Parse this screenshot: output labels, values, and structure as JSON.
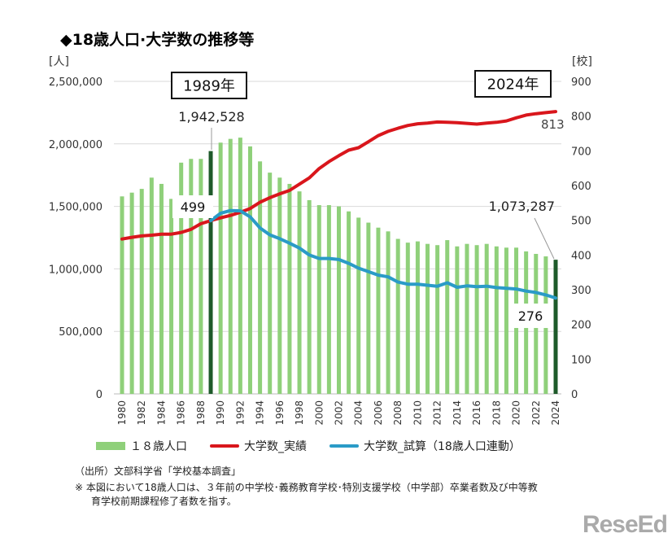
{
  "title": "◆18歳人口·大学数の推移等",
  "chart_data": {
    "type": "bar+line",
    "left_unit": "[人]",
    "right_unit": "[校]",
    "ylim_left": [
      0,
      2500000
    ],
    "ylim_right": [
      0,
      900
    ],
    "left_ticks": [
      "0",
      "500,000",
      "1,000,000",
      "1,500,000",
      "2,000,000",
      "2,500,000"
    ],
    "right_ticks": [
      "0",
      "100",
      "200",
      "300",
      "400",
      "500",
      "600",
      "700",
      "800",
      "900"
    ],
    "grid": true,
    "legend_placement": "bottom",
    "x": [
      1980,
      1981,
      1982,
      1983,
      1984,
      1985,
      1986,
      1987,
      1988,
      1989,
      1990,
      1991,
      1992,
      1993,
      1994,
      1995,
      1996,
      1997,
      1998,
      1999,
      2000,
      2001,
      2002,
      2003,
      2004,
      2005,
      2006,
      2007,
      2008,
      2009,
      2010,
      2011,
      2012,
      2013,
      2014,
      2015,
      2016,
      2017,
      2018,
      2019,
      2020,
      2021,
      2022,
      2023,
      2024
    ],
    "series": [
      {
        "name": "１８歳人口",
        "type": "bar",
        "axis": "left",
        "color": "#8fd07a",
        "highlight_color": "#1e5a2a",
        "values": [
          1580000,
          1610000,
          1640000,
          1730000,
          1680000,
          1560000,
          1850000,
          1880000,
          1880000,
          1942528,
          2010000,
          2040000,
          2050000,
          1980000,
          1860000,
          1770000,
          1730000,
          1680000,
          1620000,
          1550000,
          1510000,
          1510000,
          1500000,
          1460000,
          1410000,
          1370000,
          1330000,
          1300000,
          1240000,
          1210000,
          1220000,
          1200000,
          1190000,
          1230000,
          1180000,
          1200000,
          1190000,
          1200000,
          1180000,
          1170000,
          1170000,
          1140000,
          1120000,
          1100000,
          1073287
        ]
      },
      {
        "name": "大学数_実績",
        "type": "line",
        "axis": "right",
        "color": "#d9161c",
        "values": [
          446,
          451,
          455,
          457,
          460,
          460,
          465,
          474,
          490,
          499,
          507,
          514,
          523,
          534,
          552,
          565,
          576,
          586,
          604,
          622,
          649,
          669,
          686,
          702,
          709,
          726,
          744,
          756,
          765,
          773,
          778,
          780,
          783,
          782,
          781,
          779,
          777,
          780,
          782,
          786,
          795,
          803,
          807,
          810,
          813
        ]
      },
      {
        "name": "大学数_試算（18歳人口連動）",
        "type": "line",
        "axis": "right",
        "color": "#2a9bc7",
        "values": [
          null,
          null,
          null,
          null,
          null,
          null,
          null,
          null,
          null,
          499,
          520,
          528,
          527,
          510,
          478,
          458,
          447,
          434,
          420,
          400,
          390,
          390,
          387,
          376,
          362,
          352,
          342,
          337,
          322,
          316,
          316,
          313,
          310,
          320,
          307,
          311,
          309,
          310,
          306,
          304,
          302,
          296,
          292,
          285,
          276
        ]
      }
    ],
    "annotations": {
      "year_1989": "1989年",
      "year_2024": "2024年",
      "pop_1989": "1,942,528",
      "univ_1989": "499",
      "pop_2024": "1,073,287",
      "univ_2024_actual": "813",
      "univ_2024_trial": "276"
    }
  },
  "legend": [
    "１８歳人口",
    "大学数_実績",
    "大学数_試算（18歳人口連動）"
  ],
  "notes": {
    "source": "（出所）文部科学省「学校基本調査」",
    "note1": "※ 本図において18歳人口は、３年前の中学校･義務教育学校･特別支援学校（中学部）卒業者数及び中等教",
    "note2": "育学校前期課程修了者数を指す。"
  },
  "logo": "ReseEd"
}
